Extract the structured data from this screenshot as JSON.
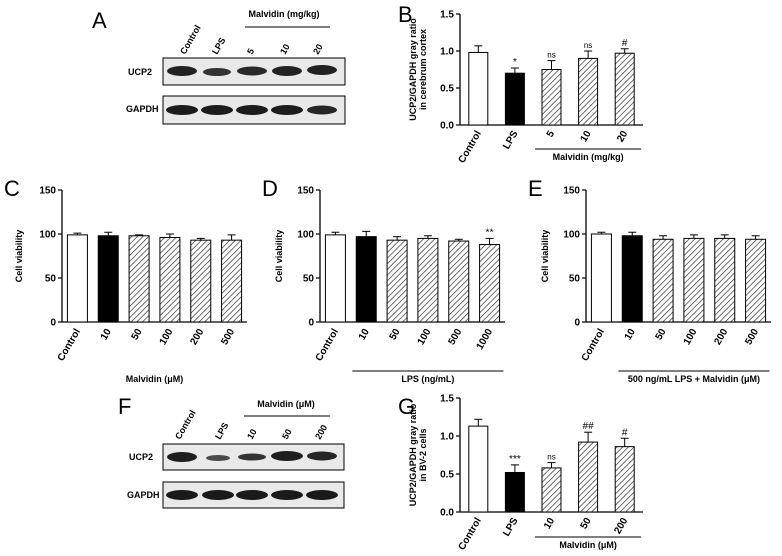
{
  "panel_letters": {
    "A": "A",
    "B": "B",
    "C": "C",
    "D": "D",
    "E": "E",
    "F": "F",
    "G": "G"
  },
  "blot_A": {
    "lane_labels": [
      "Control",
      "LPS",
      "5",
      "10",
      "20"
    ],
    "group_label": "Malvidin (mg/kg)",
    "rows": [
      "UCP2",
      "GAPDH"
    ]
  },
  "blot_F": {
    "lane_labels": [
      "Control",
      "LPS",
      "10",
      "50",
      "200"
    ],
    "group_label": "Malvidin (μM)",
    "rows": [
      "UCP2",
      "GAPDH"
    ]
  },
  "chart_data": [
    {
      "panel": "B",
      "type": "bar",
      "ylabel": "UCP2/GAPDH gray ratio\nin cerebrum cortex",
      "ylim": [
        0,
        1.5
      ],
      "yticks": [
        "0.0",
        "0.5",
        "1.0",
        "1.5"
      ],
      "categories": [
        "Control",
        "LPS",
        "5",
        "10",
        "20"
      ],
      "values": [
        0.98,
        0.7,
        0.75,
        0.9,
        0.97
      ],
      "errors": [
        0.09,
        0.07,
        0.12,
        0.1,
        0.06
      ],
      "fills": [
        "white",
        "black",
        "hatch",
        "hatch",
        "hatch"
      ],
      "annotations": [
        "",
        "*",
        "ns",
        "ns",
        "#"
      ],
      "group_label": "Malvidin (mg/kg)",
      "group_span": [
        2,
        4
      ]
    },
    {
      "panel": "C",
      "type": "bar",
      "ylabel": "Cell viability",
      "ylim": [
        0,
        150
      ],
      "yticks": [
        "0",
        "50",
        "100",
        "150"
      ],
      "categories": [
        "Control",
        "10",
        "50",
        "100",
        "200",
        "500"
      ],
      "values": [
        99,
        98,
        98,
        96,
        93,
        93
      ],
      "errors": [
        2,
        4,
        1,
        4,
        2,
        6
      ],
      "fills": [
        "white",
        "black",
        "hatch",
        "hatch",
        "hatch",
        "hatch"
      ],
      "annotations": [
        "",
        "",
        "",
        "",
        "",
        ""
      ],
      "group_label": "Malvidin (μM)",
      "group_span": null
    },
    {
      "panel": "D",
      "type": "bar",
      "ylabel": "Cell viability",
      "ylim": [
        0,
        150
      ],
      "yticks": [
        "0",
        "50",
        "100",
        "150"
      ],
      "categories": [
        "Control",
        "10",
        "50",
        "100",
        "500",
        "1000"
      ],
      "values": [
        99,
        97,
        93,
        95,
        92,
        88
      ],
      "errors": [
        3,
        6,
        4,
        3,
        2,
        7
      ],
      "fills": [
        "white",
        "black",
        "hatch",
        "hatch",
        "hatch",
        "hatch"
      ],
      "annotations": [
        "",
        "",
        "",
        "",
        "",
        "**"
      ],
      "group_label": "LPS (ng/mL)",
      "group_span": [
        1,
        5
      ]
    },
    {
      "panel": "E",
      "type": "bar",
      "ylabel": "Cell viability",
      "ylim": [
        0,
        150
      ],
      "yticks": [
        "0",
        "50",
        "100",
        "150"
      ],
      "categories": [
        "Control",
        "10",
        "50",
        "100",
        "200",
        "500"
      ],
      "values": [
        100,
        98,
        94,
        95,
        95,
        94
      ],
      "errors": [
        2,
        4,
        4,
        4,
        4,
        4
      ],
      "fills": [
        "white",
        "black",
        "hatch",
        "hatch",
        "hatch",
        "hatch"
      ],
      "annotations": [
        "",
        "",
        "",
        "",
        "",
        ""
      ],
      "group_label": "500 ng/mL LPS + Malvidin (μM)",
      "group_span": [
        1,
        5
      ]
    },
    {
      "panel": "G",
      "type": "bar",
      "ylabel": "UCP2/GAPDH gray ratio\nin BV-2 cells",
      "ylim": [
        0,
        1.5
      ],
      "yticks": [
        "0.0",
        "0.5",
        "1.0",
        "1.5"
      ],
      "categories": [
        "Control",
        "LPS",
        "10",
        "50",
        "200"
      ],
      "values": [
        1.13,
        0.52,
        0.58,
        0.92,
        0.86
      ],
      "errors": [
        0.09,
        0.1,
        0.07,
        0.13,
        0.11
      ],
      "fills": [
        "white",
        "black",
        "hatch",
        "hatch",
        "hatch"
      ],
      "annotations": [
        "",
        "***",
        "ns",
        "##",
        "#"
      ],
      "group_label": "Malvidin (μM)",
      "group_span": [
        2,
        4
      ]
    }
  ]
}
